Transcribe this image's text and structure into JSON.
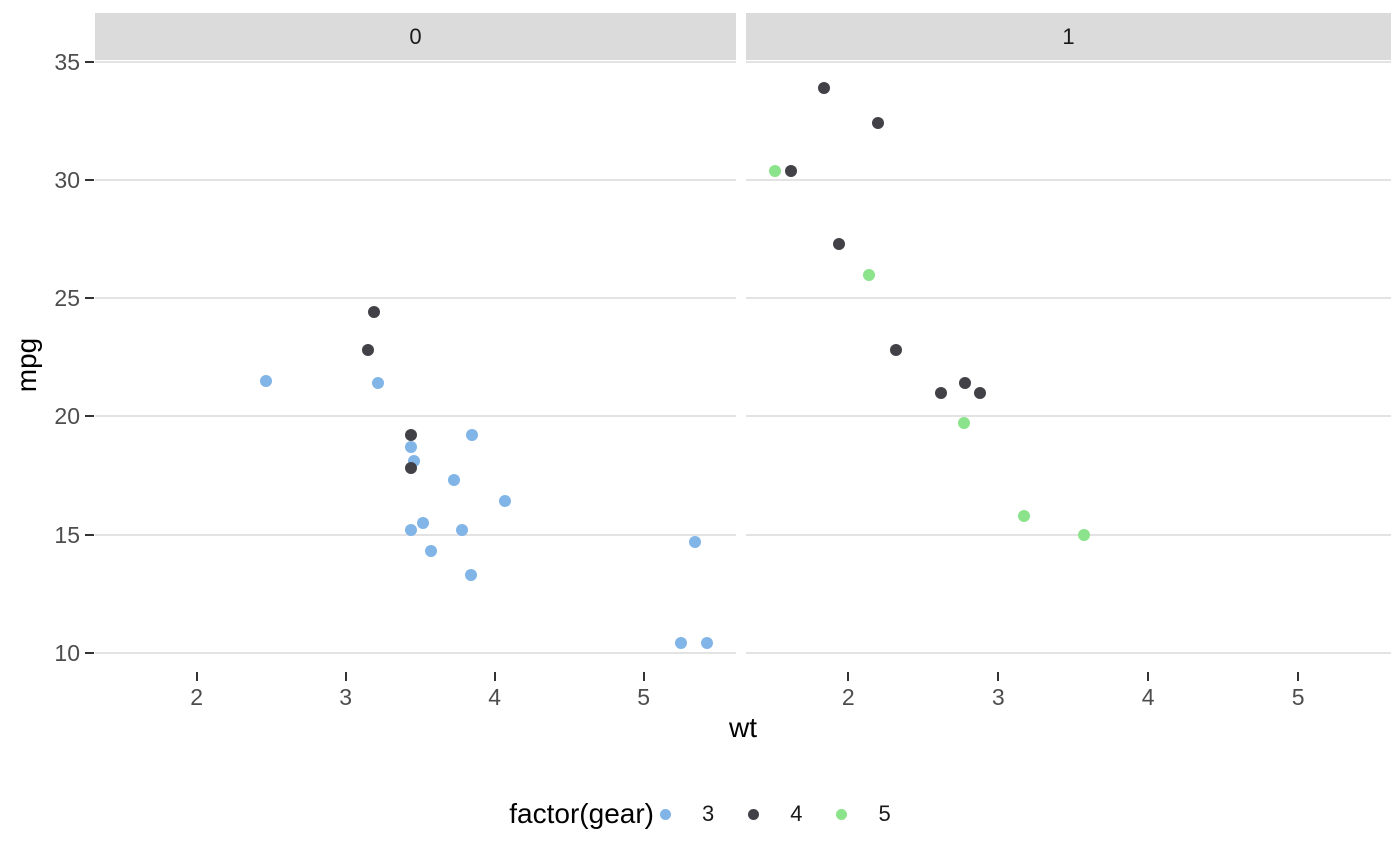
{
  "chart_data": {
    "type": "scatter",
    "title": "",
    "xlabel": "wt",
    "ylabel": "mpg",
    "x_domain": [
      1.3175,
      5.6195
    ],
    "y_domain": [
      9.225,
      35.075
    ],
    "x_ticks": [
      2,
      3,
      4,
      5
    ],
    "y_ticks": [
      10,
      15,
      20,
      25,
      30,
      35
    ],
    "grid": "horizontal-major-only",
    "style": {
      "grid_color": "#e3e3e3",
      "strip_bg": "#dbdbdb",
      "tick_color": "#333333",
      "tick_label_color": "#4d4d4d"
    },
    "legend": {
      "title": "factor(gear)",
      "position": "bottom",
      "entries": [
        {
          "label": "3",
          "color": "#81b4e7"
        },
        {
          "label": "4",
          "color": "#414147"
        },
        {
          "label": "5",
          "color": "#8be38b"
        }
      ]
    },
    "facets": [
      {
        "label": "0",
        "points": [
          {
            "x": 3.215,
            "y": 21.4,
            "gear": "3"
          },
          {
            "x": 3.44,
            "y": 18.7,
            "gear": "3"
          },
          {
            "x": 3.46,
            "y": 18.1,
            "gear": "3"
          },
          {
            "x": 3.57,
            "y": 14.3,
            "gear": "3"
          },
          {
            "x": 3.19,
            "y": 24.4,
            "gear": "4"
          },
          {
            "x": 3.15,
            "y": 22.8,
            "gear": "4"
          },
          {
            "x": 3.44,
            "y": 19.2,
            "gear": "4"
          },
          {
            "x": 3.44,
            "y": 17.8,
            "gear": "4"
          },
          {
            "x": 4.07,
            "y": 16.4,
            "gear": "3"
          },
          {
            "x": 3.73,
            "y": 17.3,
            "gear": "3"
          },
          {
            "x": 3.78,
            "y": 15.2,
            "gear": "3"
          },
          {
            "x": 5.25,
            "y": 10.4,
            "gear": "3"
          },
          {
            "x": 5.424,
            "y": 10.4,
            "gear": "3"
          },
          {
            "x": 5.345,
            "y": 14.7,
            "gear": "3"
          },
          {
            "x": 2.465,
            "y": 21.5,
            "gear": "3"
          },
          {
            "x": 3.52,
            "y": 15.5,
            "gear": "3"
          },
          {
            "x": 3.435,
            "y": 15.2,
            "gear": "3"
          },
          {
            "x": 3.84,
            "y": 13.3,
            "gear": "3"
          },
          {
            "x": 3.845,
            "y": 19.2,
            "gear": "3"
          }
        ]
      },
      {
        "label": "1",
        "points": [
          {
            "x": 2.62,
            "y": 21.0,
            "gear": "4"
          },
          {
            "x": 2.875,
            "y": 21.0,
            "gear": "4"
          },
          {
            "x": 2.32,
            "y": 22.8,
            "gear": "4"
          },
          {
            "x": 2.2,
            "y": 32.4,
            "gear": "4"
          },
          {
            "x": 1.615,
            "y": 30.4,
            "gear": "4"
          },
          {
            "x": 1.835,
            "y": 33.9,
            "gear": "4"
          },
          {
            "x": 1.935,
            "y": 27.3,
            "gear": "4"
          },
          {
            "x": 2.14,
            "y": 26.0,
            "gear": "5"
          },
          {
            "x": 1.513,
            "y": 30.4,
            "gear": "5"
          },
          {
            "x": 3.17,
            "y": 15.8,
            "gear": "5"
          },
          {
            "x": 2.77,
            "y": 19.7,
            "gear": "5"
          },
          {
            "x": 3.57,
            "y": 15.0,
            "gear": "5"
          },
          {
            "x": 2.78,
            "y": 21.4,
            "gear": "4"
          }
        ]
      }
    ]
  }
}
